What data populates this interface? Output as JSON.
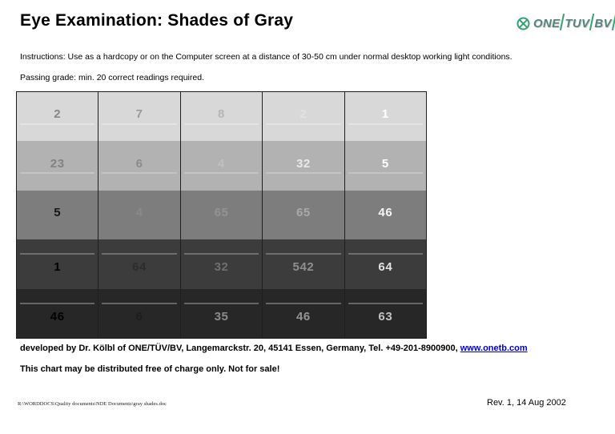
{
  "header": {
    "title": "Eye Examination: Shades of Gray"
  },
  "logo": {
    "icon": "circle-x-icon",
    "icon_color": "#35a070",
    "text_color": "#57837a",
    "words": [
      "ONE",
      "TUV",
      "BV"
    ]
  },
  "instructions": "Instructions: Use as a hardcopy or on the Computer screen at a distance of 30-50 cm under normal desktop working light conditions.",
  "passing_grade": "Passing grade: min. 20 correct readings required.",
  "grid": {
    "rows": [
      {
        "bg": "#d8d8d8",
        "line": "below",
        "line_color": "#e4e4e4",
        "cells": [
          {
            "value": "2",
            "color": "#868686"
          },
          {
            "value": "7",
            "color": "#9a9a9a"
          },
          {
            "value": "8",
            "color": "#b6b6b6"
          },
          {
            "value": "2",
            "color": "#e2e2e2"
          },
          {
            "value": "1",
            "color": "#ffffff"
          }
        ]
      },
      {
        "bg": "#b2b2b2",
        "line": "below",
        "line_color": "#c4c4c4",
        "cells": [
          {
            "value": "23",
            "color": "#828282"
          },
          {
            "value": "6",
            "color": "#8b8b8b"
          },
          {
            "value": "4",
            "color": "#c0c0c0"
          },
          {
            "value": "32",
            "color": "#e9e9e9"
          },
          {
            "value": "5",
            "color": "#ffffff"
          }
        ]
      },
      {
        "bg": "#7d7d7d",
        "line": "none",
        "line_color": "",
        "cells": [
          {
            "value": "5",
            "color": "#161616"
          },
          {
            "value": "4",
            "color": "#8a8a8a"
          },
          {
            "value": "65",
            "color": "#939393"
          },
          {
            "value": "65",
            "color": "#a9a9a9"
          },
          {
            "value": "46",
            "color": "#f4f4f4"
          }
        ]
      },
      {
        "bg": "#3c3c3c",
        "line": "above",
        "line_color": "#6e6e6e",
        "cells": [
          {
            "value": "1",
            "color": "#000000"
          },
          {
            "value": "64",
            "color": "#2c2c2c"
          },
          {
            "value": "32",
            "color": "#6f6f6f"
          },
          {
            "value": "542",
            "color": "#8f8f8f"
          },
          {
            "value": "64",
            "color": "#e2e2e2"
          }
        ]
      },
      {
        "bg": "#272727",
        "line": "above",
        "line_color": "#666666",
        "cells": [
          {
            "value": "46",
            "color": "#000000"
          },
          {
            "value": "6",
            "color": "#1d1d1d"
          },
          {
            "value": "35",
            "color": "#8b8b8b"
          },
          {
            "value": "46",
            "color": "#959595"
          },
          {
            "value": "63",
            "color": "#c2c2c2"
          }
        ]
      }
    ]
  },
  "footer": {
    "developed_prefix": "developed by Dr. Kölbl of ONE/TÜV/BV, Langemarckstr. 20, 45141 Essen, Germany, Tel. +49-201-8900900, ",
    "link_text": "www.onetb.com",
    "distribution": "This chart may be distributed free of charge only. Not for sale!",
    "file_path": "R:\\WORDDOCS\\Quality documents\\NDE Documents\\gray shades.doc",
    "revision": "Rev. 1, 14 Aug 2002"
  }
}
